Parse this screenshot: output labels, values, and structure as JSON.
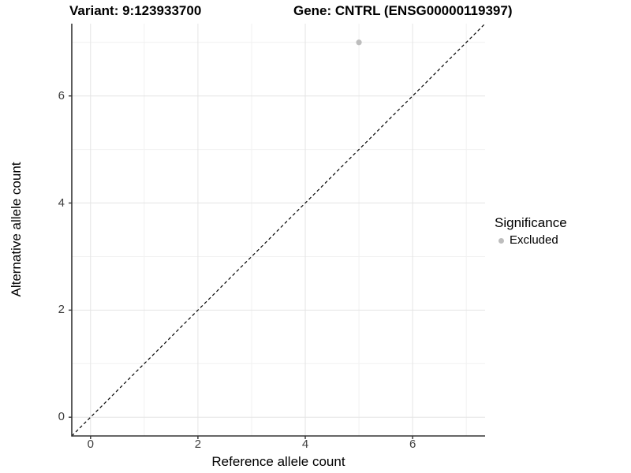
{
  "chart_data": {
    "type": "scatter",
    "title_left": "Variant: 9:123933700",
    "title_right": "Gene: CNTRL (ENSG00000119397)",
    "xlabel": "Reference allele count",
    "ylabel": "Alternative allele count",
    "xlim": [
      -0.35,
      7.35
    ],
    "ylim": [
      -0.35,
      7.35
    ],
    "x_ticks": {
      "major": [
        0,
        2,
        4,
        6
      ],
      "minor": [
        1,
        3,
        5,
        7
      ],
      "labels": [
        "0",
        "2",
        "4",
        "6"
      ]
    },
    "y_ticks": {
      "major": [
        0,
        2,
        4,
        6
      ],
      "minor": [
        1,
        3,
        5,
        7
      ],
      "labels": [
        "0",
        "2",
        "4",
        "6"
      ]
    },
    "grid": "major and minor gridlines on white panel",
    "identity_line": {
      "equation": "y = x",
      "style": "dashed",
      "color": "#000000"
    },
    "series": [
      {
        "name": "Excluded",
        "marker": "circle",
        "color": "#bdbdbd",
        "points": [
          {
            "x": 5,
            "y": 7
          }
        ]
      }
    ],
    "legend": {
      "title": "Significance",
      "position": "right",
      "entries": [
        {
          "label": "Excluded",
          "color": "#bdbdbd",
          "marker": "circle"
        }
      ]
    }
  },
  "colors": {
    "background": "#ffffff",
    "grid_major": "#e4e4e4",
    "grid_minor": "#f1f1f1",
    "axis_line": "#333333",
    "tick_mark": "#333333",
    "tick_label": "#404040",
    "point": "#bdbdbd",
    "title_text": "#000000"
  }
}
